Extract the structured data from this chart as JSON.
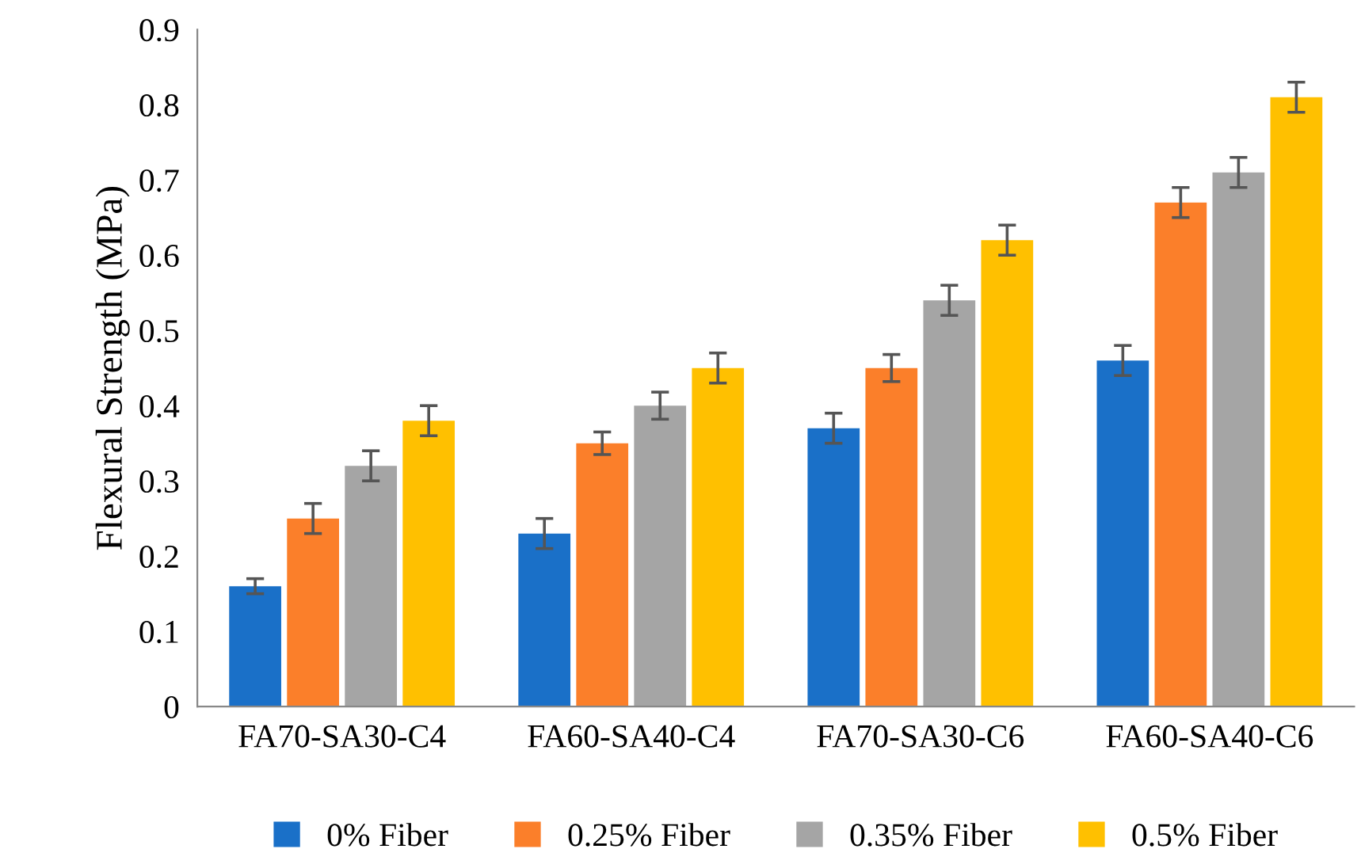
{
  "chart_data": {
    "type": "bar",
    "ylabel": "Flexural Strength (MPa)",
    "categories": [
      "FA70-SA30-C4",
      "FA60-SA40-C4",
      "FA70-SA30-C6",
      "FA60-SA40-C6"
    ],
    "series": [
      {
        "name": "0% Fiber",
        "color": "#1a70c8",
        "values": [
          0.16,
          0.23,
          0.37,
          0.46
        ],
        "errors": [
          0.01,
          0.02,
          0.02,
          0.02
        ]
      },
      {
        "name": "0.25% Fiber",
        "color": "#fb7f2a",
        "values": [
          0.25,
          0.35,
          0.45,
          0.67
        ],
        "errors": [
          0.02,
          0.015,
          0.018,
          0.02
        ]
      },
      {
        "name": "0.35% Fiber",
        "color": "#a5a5a5",
        "values": [
          0.32,
          0.4,
          0.54,
          0.71
        ],
        "errors": [
          0.02,
          0.018,
          0.02,
          0.02
        ]
      },
      {
        "name": "0.5% Fiber",
        "color": "#ffc000",
        "values": [
          0.38,
          0.45,
          0.62,
          0.81
        ],
        "errors": [
          0.02,
          0.02,
          0.02,
          0.02
        ]
      }
    ],
    "ylim": [
      0,
      0.9
    ],
    "yticks": [
      0,
      0.1,
      0.2,
      0.3,
      0.4,
      0.5,
      0.6,
      0.7,
      0.8,
      0.9
    ],
    "grid": false,
    "legend": "bottom"
  }
}
